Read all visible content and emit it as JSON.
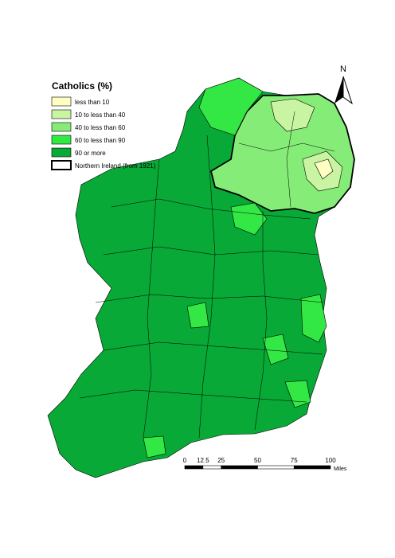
{
  "legend": {
    "title": "Catholics (%)",
    "items": [
      {
        "label": "less than 10",
        "color": "#ffffc4"
      },
      {
        "label": "10 to less than 40",
        "color": "#c9f5a3"
      },
      {
        "label": "40 to less than 60",
        "color": "#86ec78"
      },
      {
        "label": "60 to less than 90",
        "color": "#33e845"
      },
      {
        "label": "90 or more",
        "color": "#08a936"
      }
    ],
    "border_item": "Northern Ireland (from 1921)"
  },
  "north": "N",
  "scale": {
    "labels": [
      "0",
      "12.5",
      "25",
      "50",
      "75",
      "100"
    ],
    "unit": "Miles"
  }
}
